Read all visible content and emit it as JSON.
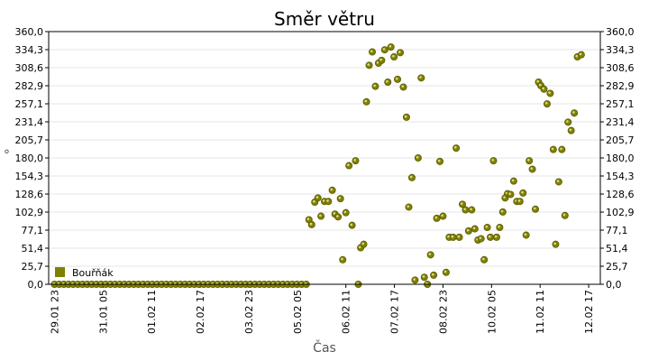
{
  "chart_data": {
    "type": "scatter",
    "title": "Směr větru",
    "xlabel": "Čas",
    "ylabel": "°",
    "ylim": [
      0,
      360
    ],
    "y_ticks": [
      "0,0",
      "25,7",
      "51,4",
      "77,1",
      "102,9",
      "128,6",
      "154,3",
      "180,0",
      "205,7",
      "231,4",
      "257,1",
      "282,9",
      "308,6",
      "334,3",
      "360,0"
    ],
    "x_ticks": [
      {
        "label": "29.01 23",
        "day": 0.0
      },
      {
        "label": "31.01 05",
        "day": 1.25
      },
      {
        "label": "01.02 11",
        "day": 2.5
      },
      {
        "label": "02.02 17",
        "day": 3.75
      },
      {
        "label": "03.02 23",
        "day": 5.0
      },
      {
        "label": "05.02 05",
        "day": 6.25
      },
      {
        "label": "06.02 11",
        "day": 7.5
      },
      {
        "label": "07.02 17",
        "day": 8.75
      },
      {
        "label": "08.02 23",
        "day": 10.0
      },
      {
        "label": "10.02 05",
        "day": 11.25
      },
      {
        "label": "11.02 11",
        "day": 12.5
      },
      {
        "label": "12.02 17",
        "day": 13.75
      }
    ],
    "x_range_days": [
      -0.15,
      14.05
    ],
    "grid": true,
    "legend_position": "bottom-left",
    "color": "#808000",
    "series": [
      {
        "name": "Bouřňák",
        "points": [
          [
            0.0,
            0
          ],
          [
            0.12,
            0
          ],
          [
            0.24,
            0
          ],
          [
            0.36,
            0
          ],
          [
            0.48,
            0
          ],
          [
            0.6,
            0
          ],
          [
            0.72,
            0
          ],
          [
            0.84,
            0
          ],
          [
            0.96,
            0
          ],
          [
            1.08,
            0
          ],
          [
            1.2,
            0
          ],
          [
            1.32,
            0
          ],
          [
            1.44,
            0
          ],
          [
            1.56,
            0
          ],
          [
            1.68,
            0
          ],
          [
            1.8,
            0
          ],
          [
            1.92,
            0
          ],
          [
            2.04,
            0
          ],
          [
            2.16,
            0
          ],
          [
            2.28,
            0
          ],
          [
            2.4,
            0
          ],
          [
            2.52,
            0
          ],
          [
            2.64,
            0
          ],
          [
            2.76,
            0
          ],
          [
            2.88,
            0
          ],
          [
            3.0,
            0
          ],
          [
            3.12,
            0
          ],
          [
            3.24,
            0
          ],
          [
            3.36,
            0
          ],
          [
            3.48,
            0
          ],
          [
            3.6,
            0
          ],
          [
            3.72,
            0
          ],
          [
            3.84,
            0
          ],
          [
            3.96,
            0
          ],
          [
            4.08,
            0
          ],
          [
            4.2,
            0
          ],
          [
            4.32,
            0
          ],
          [
            4.44,
            0
          ],
          [
            4.56,
            0
          ],
          [
            4.68,
            0
          ],
          [
            4.8,
            0
          ],
          [
            4.92,
            0
          ],
          [
            5.04,
            0
          ],
          [
            5.16,
            0
          ],
          [
            5.28,
            0
          ],
          [
            5.4,
            0
          ],
          [
            5.52,
            0
          ],
          [
            5.64,
            0
          ],
          [
            5.76,
            0
          ],
          [
            5.88,
            0
          ],
          [
            6.0,
            0
          ],
          [
            6.12,
            0
          ],
          [
            6.24,
            0
          ],
          [
            6.36,
            0
          ],
          [
            6.48,
            0
          ],
          [
            6.55,
            92
          ],
          [
            6.62,
            85
          ],
          [
            6.7,
            117
          ],
          [
            6.78,
            123
          ],
          [
            6.86,
            97
          ],
          [
            6.95,
            118
          ],
          [
            7.05,
            118
          ],
          [
            7.15,
            134
          ],
          [
            7.22,
            100
          ],
          [
            7.3,
            96
          ],
          [
            7.36,
            122
          ],
          [
            7.42,
            35
          ],
          [
            7.5,
            102
          ],
          [
            7.58,
            169
          ],
          [
            7.66,
            84
          ],
          [
            7.75,
            176
          ],
          [
            7.82,
            0
          ],
          [
            7.88,
            52
          ],
          [
            7.96,
            57
          ],
          [
            8.03,
            260
          ],
          [
            8.1,
            312
          ],
          [
            8.18,
            331
          ],
          [
            8.26,
            282
          ],
          [
            8.34,
            315
          ],
          [
            8.42,
            319
          ],
          [
            8.5,
            334
          ],
          [
            8.58,
            288
          ],
          [
            8.66,
            338
          ],
          [
            8.74,
            324
          ],
          [
            8.83,
            292
          ],
          [
            8.9,
            330
          ],
          [
            8.98,
            281
          ],
          [
            9.06,
            238
          ],
          [
            9.12,
            110
          ],
          [
            9.2,
            152
          ],
          [
            9.28,
            6
          ],
          [
            9.36,
            180
          ],
          [
            9.44,
            294
          ],
          [
            9.52,
            10
          ],
          [
            9.6,
            0
          ],
          [
            9.68,
            42
          ],
          [
            9.76,
            13
          ],
          [
            9.84,
            94
          ],
          [
            9.92,
            175
          ],
          [
            10.0,
            97
          ],
          [
            10.08,
            17
          ],
          [
            10.16,
            67
          ],
          [
            10.26,
            67
          ],
          [
            10.34,
            194
          ],
          [
            10.42,
            67
          ],
          [
            10.5,
            114
          ],
          [
            10.58,
            106
          ],
          [
            10.66,
            76
          ],
          [
            10.74,
            106
          ],
          [
            10.82,
            79
          ],
          [
            10.9,
            63
          ],
          [
            10.98,
            65
          ],
          [
            11.06,
            35
          ],
          [
            11.14,
            81
          ],
          [
            11.22,
            67
          ],
          [
            11.3,
            176
          ],
          [
            11.38,
            67
          ],
          [
            11.46,
            81
          ],
          [
            11.54,
            103
          ],
          [
            11.6,
            123
          ],
          [
            11.66,
            129
          ],
          [
            11.74,
            128
          ],
          [
            11.82,
            147
          ],
          [
            11.9,
            118
          ],
          [
            11.98,
            118
          ],
          [
            12.06,
            130
          ],
          [
            12.14,
            70
          ],
          [
            12.22,
            176
          ],
          [
            12.3,
            164
          ],
          [
            12.38,
            107
          ],
          [
            12.46,
            288
          ],
          [
            12.52,
            283
          ],
          [
            12.6,
            278
          ],
          [
            12.68,
            257
          ],
          [
            12.76,
            272
          ],
          [
            12.84,
            192
          ],
          [
            12.9,
            57
          ],
          [
            12.98,
            146
          ],
          [
            13.06,
            192
          ],
          [
            13.14,
            98
          ],
          [
            13.22,
            231
          ],
          [
            13.3,
            219
          ],
          [
            13.38,
            244
          ],
          [
            13.46,
            324
          ],
          [
            13.56,
            327
          ]
        ]
      }
    ]
  }
}
